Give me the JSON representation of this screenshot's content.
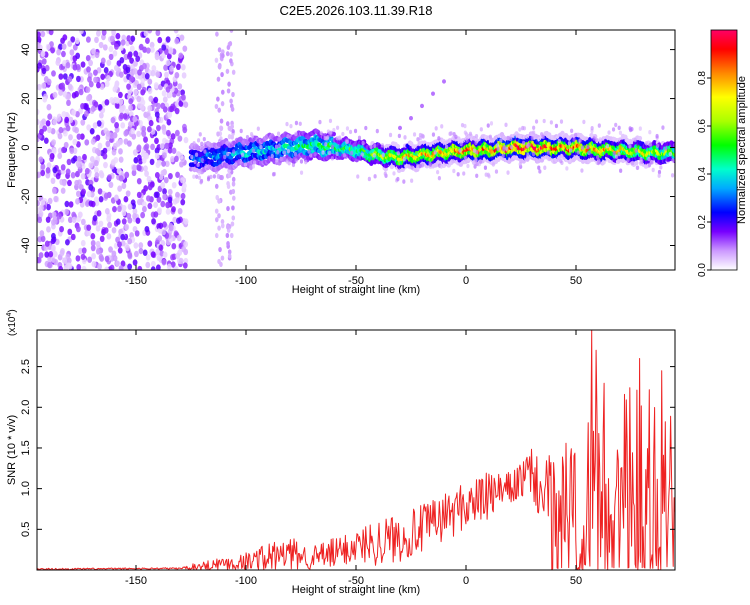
{
  "title": "C2E5.2026.103.11.39.R18",
  "chart_data": [
    {
      "type": "heatmap",
      "name": "spectrogram",
      "title": "C2E5.2026.103.11.39.R18",
      "xlabel": "Height of straight line (km)",
      "ylabel": "Frequency (Hz)",
      "xlim": [
        -195,
        95
      ],
      "ylim": [
        -50,
        48
      ],
      "x_ticks": [
        -150,
        -100,
        -50,
        0,
        50
      ],
      "y_ticks": [
        -40,
        -20,
        0,
        20,
        40
      ],
      "colorbar": {
        "label": "Normalized spectral amplitude",
        "range": [
          0.0,
          1.0
        ],
        "ticks": [
          "0.0",
          "0.2",
          "0.4",
          "0.6",
          "0.8"
        ],
        "colors": [
          "#ffffff",
          "#cc99ff",
          "#7700ff",
          "#0000ff",
          "#00aaff",
          "#00ffcc",
          "#00ff00",
          "#aaff00",
          "#ffff00",
          "#ff8800",
          "#ff0000",
          "#ff0066"
        ]
      },
      "noise_region_x": [
        -195,
        -127
      ],
      "signal_band": {
        "x": [
          -125,
          -110,
          -100,
          -90,
          -80,
          -70,
          -60,
          -50,
          -40,
          -30,
          -20,
          -10,
          0,
          10,
          20,
          30,
          40,
          50,
          60,
          70,
          80,
          90,
          95
        ],
        "freq": [
          -5,
          -3,
          -2,
          -1,
          0,
          1,
          0,
          -1,
          -3,
          -4,
          -3,
          -2,
          -1,
          -1,
          0,
          0,
          0,
          0,
          -1,
          -1,
          -2,
          -2,
          -2
        ],
        "amplitude": [
          0.3,
          0.35,
          0.4,
          0.4,
          0.45,
          0.5,
          0.5,
          0.55,
          0.65,
          0.75,
          0.8,
          0.8,
          0.85,
          0.85,
          0.95,
          0.95,
          0.9,
          0.85,
          0.8,
          0.75,
          0.7,
          0.65,
          0.6
        ]
      },
      "harmonic_trace": {
        "x": [
          -30,
          -25,
          -20,
          -15,
          -10
        ],
        "freq": [
          8,
          12,
          17,
          22,
          27
        ]
      }
    },
    {
      "type": "line",
      "name": "snr",
      "xlabel": "Height of straight line (km)",
      "ylabel": "SNR (10 * v/v)",
      "y_multiplier": "(x10",
      "y_multiplier_exp": "4",
      "y_multiplier_close": ")",
      "xlim": [
        -195,
        95
      ],
      "ylim": [
        0,
        2.95
      ],
      "x_ticks": [
        -150,
        -100,
        -50,
        0,
        50
      ],
      "y_ticks": [
        "0.5",
        "1.0",
        "1.5",
        "2.0",
        "2.5"
      ],
      "y_tick_values": [
        0.5,
        1.0,
        1.5,
        2.0,
        2.5
      ],
      "color": "#ee2222",
      "envelope": {
        "x": [
          -195,
          -130,
          -120,
          -110,
          -100,
          -90,
          -80,
          -70,
          -60,
          -50,
          -40,
          -30,
          -20,
          -10,
          0,
          10,
          20,
          30,
          40,
          50,
          60,
          70,
          80,
          90,
          95
        ],
        "mean": [
          0.01,
          0.02,
          0.05,
          0.08,
          0.1,
          0.15,
          0.2,
          0.15,
          0.2,
          0.3,
          0.35,
          0.4,
          0.5,
          0.65,
          0.8,
          0.9,
          1.0,
          1.2,
          0.6,
          0.8,
          1.0,
          0.8,
          0.9,
          0.8,
          0.7
        ],
        "amplitude": [
          0.01,
          0.01,
          0.06,
          0.1,
          0.12,
          0.2,
          0.2,
          0.15,
          0.2,
          0.2,
          0.3,
          0.3,
          0.3,
          0.3,
          0.3,
          0.3,
          0.2,
          0.3,
          0.8,
          1.3,
          1.4,
          1.4,
          1.4,
          1.4,
          1.3
        ]
      },
      "peaks": [
        {
          "x": 57,
          "y": 2.95
        },
        {
          "x": 59,
          "y": 2.7
        },
        {
          "x": 79,
          "y": 2.6
        },
        {
          "x": 89,
          "y": 2.45
        }
      ]
    }
  ]
}
